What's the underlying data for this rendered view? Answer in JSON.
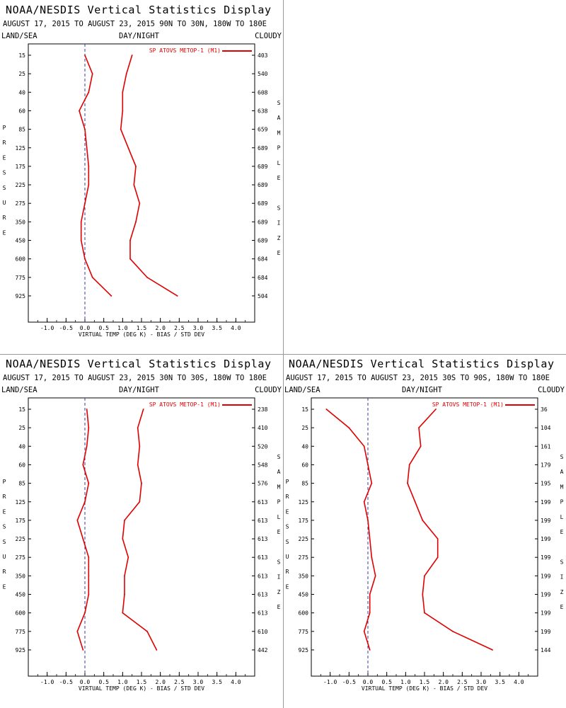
{
  "page": {
    "header_left": "LAND/SEA",
    "header_mid": "DAY/NIGHT",
    "header_right": "CLOUDY",
    "pressure_label": "PRESSURE",
    "sample_label": "SAMPLE SIZE",
    "xaxis_label": "VIRTUAL TEMP (DEG K) - BIAS / STD DEV",
    "legend_label": "SP ATOVS METOP-1 (M1)",
    "line_color": "#e00000",
    "zero_line_color": "#3a3aa8"
  },
  "chart_data": [
    {
      "type": "line",
      "title": "NOAA/NESDIS Vertical Statistics Display",
      "subtitle": "AUGUST 17, 2015 TO AUGUST 23, 2015  90N TO 30N, 180W TO 180E",
      "xlim": [
        -1.5,
        4.5
      ],
      "xticks": [
        "-1.0",
        "-0.5",
        "0.0",
        "0.5",
        "1.0",
        "1.5",
        "2.0",
        "2.5",
        "3.0",
        "3.5",
        "4.0"
      ],
      "pressure_levels": [
        15,
        25,
        40,
        60,
        85,
        125,
        175,
        225,
        275,
        350,
        450,
        600,
        775,
        925
      ],
      "sample_size": [
        403,
        540,
        608,
        638,
        659,
        689,
        689,
        689,
        689,
        689,
        689,
        684,
        684,
        504
      ],
      "series": [
        {
          "name": "bias",
          "values": [
            0.0,
            0.2,
            0.1,
            -0.15,
            0.0,
            0.05,
            0.1,
            0.1,
            0.0,
            -0.1,
            -0.1,
            0.0,
            0.2,
            0.7
          ]
        },
        {
          "name": "std dev",
          "values": [
            1.25,
            1.1,
            1.0,
            1.0,
            0.95,
            1.15,
            1.35,
            1.3,
            1.45,
            1.35,
            1.2,
            1.2,
            1.65,
            2.45
          ]
        }
      ]
    },
    {
      "type": "line",
      "title": "NOAA/NESDIS Vertical Statistics Display",
      "subtitle": "AUGUST 17, 2015 TO AUGUST 23, 2015  30N TO 30S, 180W TO 180E",
      "xlim": [
        -1.5,
        4.5
      ],
      "xticks": [
        "-1.0",
        "-0.5",
        "0.0",
        "0.5",
        "1.0",
        "1.5",
        "2.0",
        "2.5",
        "3.0",
        "3.5",
        "4.0"
      ],
      "pressure_levels": [
        15,
        25,
        40,
        60,
        85,
        125,
        175,
        225,
        275,
        350,
        450,
        600,
        775,
        925
      ],
      "sample_size": [
        238,
        410,
        520,
        548,
        576,
        613,
        613,
        613,
        613,
        613,
        613,
        613,
        610,
        442
      ],
      "series": [
        {
          "name": "bias",
          "values": [
            0.05,
            0.1,
            0.05,
            -0.05,
            0.1,
            0.0,
            -0.2,
            -0.05,
            0.1,
            0.1,
            0.1,
            0.0,
            -0.2,
            -0.05
          ]
        },
        {
          "name": "std dev",
          "values": [
            1.55,
            1.4,
            1.45,
            1.4,
            1.5,
            1.45,
            1.05,
            1.0,
            1.15,
            1.05,
            1.05,
            1.0,
            1.65,
            1.9
          ]
        }
      ]
    },
    {
      "type": "line",
      "title": "NOAA/NESDIS Vertical Statistics Display",
      "subtitle": "AUGUST 17, 2015 TO AUGUST 23, 2015  30S TO 90S, 180W TO 180E",
      "xlim": [
        -1.5,
        4.5
      ],
      "xticks": [
        "-1.0",
        "-0.5",
        "0.0",
        "0.5",
        "1.0",
        "1.5",
        "2.0",
        "2.5",
        "3.0",
        "3.5",
        "4.0"
      ],
      "pressure_levels": [
        15,
        25,
        40,
        60,
        85,
        125,
        175,
        225,
        275,
        350,
        450,
        600,
        775,
        925
      ],
      "sample_size": [
        36,
        104,
        161,
        179,
        195,
        199,
        199,
        199,
        199,
        199,
        199,
        199,
        199,
        144
      ],
      "series": [
        {
          "name": "bias",
          "values": [
            -1.1,
            -0.5,
            -0.1,
            0.0,
            0.1,
            -0.1,
            0.0,
            0.05,
            0.1,
            0.2,
            0.05,
            0.05,
            -0.1,
            0.05
          ]
        },
        {
          "name": "std dev",
          "values": [
            1.8,
            1.35,
            1.4,
            1.1,
            1.05,
            1.25,
            1.45,
            1.85,
            1.85,
            1.5,
            1.45,
            1.5,
            2.25,
            3.3
          ]
        }
      ]
    }
  ]
}
